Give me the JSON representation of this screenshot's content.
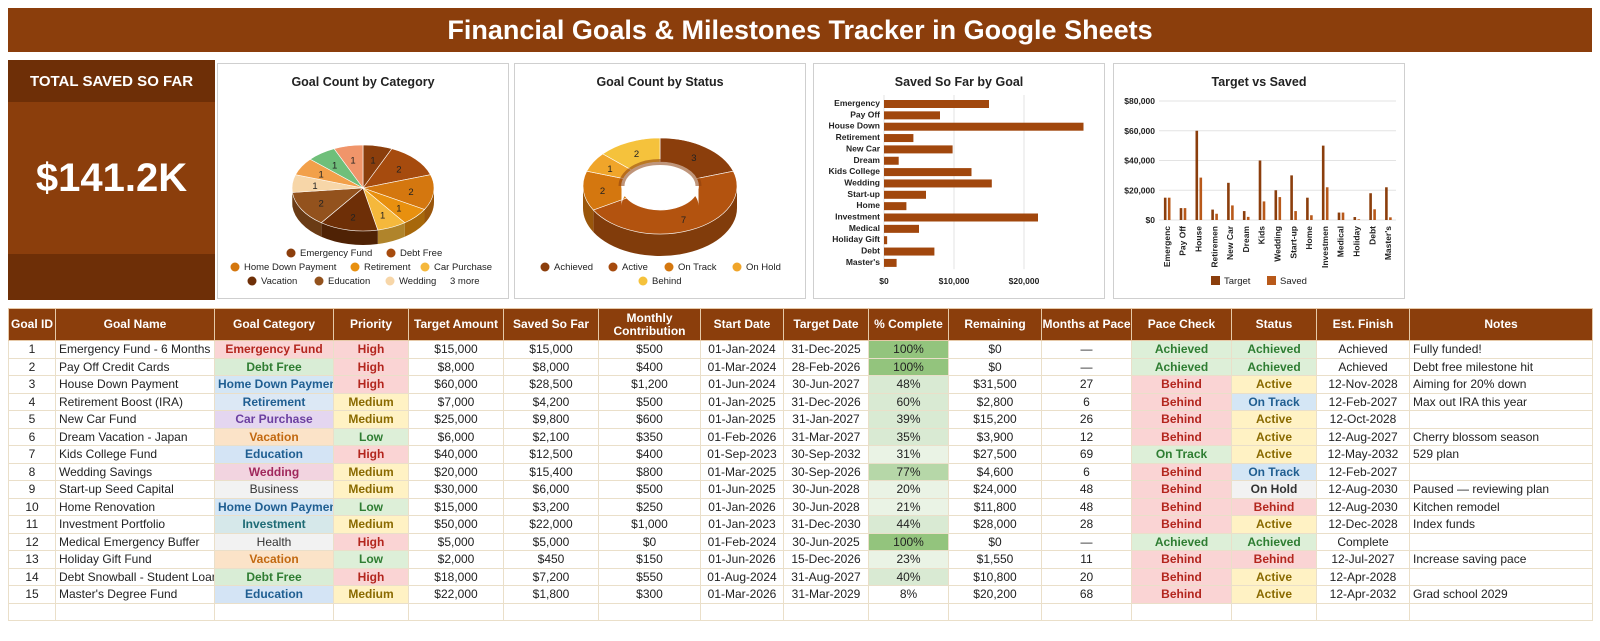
{
  "title": "Financial Goals & Milestones Tracker in Google Sheets",
  "total": {
    "label": "TOTAL SAVED SO FAR",
    "value": "$141.2K"
  },
  "colors": {
    "brand": "#8B3E0C",
    "brand_dark": "#6E2F07"
  },
  "charts": {
    "category": {
      "title": "Goal Count by Category",
      "legend": [
        {
          "label": "Emergency Fund",
          "color": "#8B3E0C"
        },
        {
          "label": "Debt Free",
          "color": "#A64B0E"
        },
        {
          "label": "Home Down Payment",
          "color": "#D4770F"
        },
        {
          "label": "Retirement",
          "color": "#E8900F"
        },
        {
          "label": "Car Purchase",
          "color": "#F5B83C"
        },
        {
          "label": "Vacation",
          "color": "#6E2F07"
        },
        {
          "label": "Education",
          "color": "#93521D"
        },
        {
          "label": "Wedding",
          "color": "#F7D6A8"
        }
      ],
      "more": "3 more"
    },
    "status": {
      "title": "Goal Count by Status",
      "legend": [
        {
          "label": "Achieved",
          "color": "#8B3E0C"
        },
        {
          "label": "Active",
          "color": "#A64B0E"
        },
        {
          "label": "On Track",
          "color": "#D4770F"
        },
        {
          "label": "On Hold",
          "color": "#F0A52A"
        },
        {
          "label": "Behind",
          "color": "#F5C23C"
        }
      ]
    },
    "saved": {
      "title": "Saved So Far by Goal"
    },
    "target": {
      "title": "Target vs Saved",
      "legend": [
        {
          "label": "Target",
          "color": "#8B3E0C"
        },
        {
          "label": "Saved",
          "color": "#B8591A"
        }
      ]
    }
  },
  "chart_data": [
    {
      "type": "pie",
      "title": "Goal Count by Category",
      "labels": [
        "Emergency Fund",
        "Debt Free",
        "Home Down Payment",
        "Retirement",
        "Car Purchase",
        "Vacation",
        "Education",
        "Wedding",
        "Business",
        "Investment",
        "Health"
      ],
      "values": [
        1,
        2,
        2,
        1,
        1,
        2,
        2,
        1,
        1,
        1,
        1
      ]
    },
    {
      "type": "pie",
      "title": "Goal Count by Status",
      "labels": [
        "Achieved",
        "Active",
        "On Track",
        "On Hold",
        "Behind"
      ],
      "values": [
        3,
        7,
        2,
        1,
        2
      ]
    },
    {
      "type": "bar",
      "title": "Saved So Far by Goal",
      "categories": [
        "Emergency",
        "Pay Off",
        "House Down",
        "Retirement",
        "New Car",
        "Dream",
        "Kids College",
        "Wedding",
        "Start-up",
        "Home",
        "Investment",
        "Medical",
        "Holiday Gift",
        "Debt",
        "Master's"
      ],
      "values": [
        15000,
        8000,
        28500,
        4200,
        9800,
        2100,
        12500,
        15400,
        6000,
        3200,
        22000,
        5000,
        450,
        7200,
        1800
      ],
      "xticks": [
        "$0",
        "$10,000",
        "$20,000"
      ],
      "xlim": [
        0,
        30000
      ]
    },
    {
      "type": "bar",
      "title": "Target vs Saved",
      "categories": [
        "Emergenc",
        "Pay Off",
        "House",
        "Retiremen",
        "New Car",
        "Dream",
        "Kids",
        "Wedding",
        "Start-up",
        "Home",
        "Investmen",
        "Medical",
        "Holiday",
        "Debt",
        "Master's"
      ],
      "series": [
        {
          "name": "Target",
          "values": [
            15000,
            8000,
            60000,
            7000,
            25000,
            6000,
            40000,
            20000,
            30000,
            15000,
            50000,
            5000,
            2000,
            18000,
            22000
          ]
        },
        {
          "name": "Saved",
          "values": [
            15000,
            8000,
            28500,
            4200,
            9800,
            2100,
            12500,
            15400,
            6000,
            3200,
            22000,
            5000,
            450,
            7200,
            1800
          ]
        }
      ],
      "yticks": [
        "$80,000",
        "$60,000",
        "$40,000",
        "$20,000",
        "$0"
      ],
      "ylim": [
        0,
        80000
      ]
    }
  ],
  "table": {
    "headers": [
      "Goal ID",
      "Goal Name",
      "Goal Category",
      "Priority",
      "Target Amount",
      "Saved So Far",
      "Monthly Contribution",
      "Start Date",
      "Target Date",
      "% Complete",
      "Remaining",
      "Months at Pace",
      "Pace Check",
      "Status",
      "Est. Finish",
      "Notes"
    ],
    "rows": [
      [
        "1",
        "Emergency Fund - 6 Months",
        "Emergency Fund",
        "High",
        "$15,000",
        "$15,000",
        "$500",
        "01-Jan-2024",
        "31-Dec-2025",
        "100%",
        "$0",
        "—",
        "Achieved",
        "Achieved",
        "Achieved",
        "Fully funded!"
      ],
      [
        "2",
        "Pay Off Credit Cards",
        "Debt Free",
        "High",
        "$8,000",
        "$8,000",
        "$400",
        "01-Mar-2024",
        "28-Feb-2026",
        "100%",
        "$0",
        "—",
        "Achieved",
        "Achieved",
        "Achieved",
        "Debt free milestone hit"
      ],
      [
        "3",
        "House Down Payment",
        "Home Down Payment",
        "High",
        "$60,000",
        "$28,500",
        "$1,200",
        "01-Jun-2024",
        "30-Jun-2027",
        "48%",
        "$31,500",
        "27",
        "Behind",
        "Active",
        "12-Nov-2028",
        "Aiming for 20% down"
      ],
      [
        "4",
        "Retirement Boost (IRA)",
        "Retirement",
        "Medium",
        "$7,000",
        "$4,200",
        "$500",
        "01-Jan-2025",
        "31-Dec-2026",
        "60%",
        "$2,800",
        "6",
        "Behind",
        "On Track",
        "12-Feb-2027",
        "Max out IRA this year"
      ],
      [
        "5",
        "New Car Fund",
        "Car Purchase",
        "Medium",
        "$25,000",
        "$9,800",
        "$600",
        "01-Jan-2025",
        "31-Jan-2027",
        "39%",
        "$15,200",
        "26",
        "Behind",
        "Active",
        "12-Oct-2028",
        ""
      ],
      [
        "6",
        "Dream Vacation - Japan",
        "Vacation",
        "Low",
        "$6,000",
        "$2,100",
        "$350",
        "01-Feb-2026",
        "31-Mar-2027",
        "35%",
        "$3,900",
        "12",
        "Behind",
        "Active",
        "12-Aug-2027",
        "Cherry blossom season"
      ],
      [
        "7",
        "Kids College Fund",
        "Education",
        "High",
        "$40,000",
        "$12,500",
        "$400",
        "01-Sep-2023",
        "30-Sep-2032",
        "31%",
        "$27,500",
        "69",
        "On Track",
        "Active",
        "12-May-2032",
        "529 plan"
      ],
      [
        "8",
        "Wedding Savings",
        "Wedding",
        "Medium",
        "$20,000",
        "$15,400",
        "$800",
        "01-Mar-2025",
        "30-Sep-2026",
        "77%",
        "$4,600",
        "6",
        "Behind",
        "On Track",
        "12-Feb-2027",
        ""
      ],
      [
        "9",
        "Start-up Seed Capital",
        "Business",
        "Medium",
        "$30,000",
        "$6,000",
        "$500",
        "01-Jun-2025",
        "30-Jun-2028",
        "20%",
        "$24,000",
        "48",
        "Behind",
        "On Hold",
        "12-Aug-2030",
        "Paused — reviewing plan"
      ],
      [
        "10",
        "Home Renovation",
        "Home Down Payment",
        "Low",
        "$15,000",
        "$3,200",
        "$250",
        "01-Jan-2026",
        "30-Jun-2028",
        "21%",
        "$11,800",
        "48",
        "Behind",
        "Behind",
        "12-Aug-2030",
        "Kitchen remodel"
      ],
      [
        "11",
        "Investment Portfolio",
        "Investment",
        "Medium",
        "$50,000",
        "$22,000",
        "$1,000",
        "01-Jan-2023",
        "31-Dec-2030",
        "44%",
        "$28,000",
        "28",
        "Behind",
        "Active",
        "12-Dec-2028",
        "Index funds"
      ],
      [
        "12",
        "Medical Emergency Buffer",
        "Health",
        "High",
        "$5,000",
        "$5,000",
        "$0",
        "01-Feb-2024",
        "30-Jun-2025",
        "100%",
        "$0",
        "—",
        "Achieved",
        "Achieved",
        "Complete",
        ""
      ],
      [
        "13",
        "Holiday Gift Fund",
        "Vacation",
        "Low",
        "$2,000",
        "$450",
        "$150",
        "01-Jun-2026",
        "15-Dec-2026",
        "23%",
        "$1,550",
        "11",
        "Behind",
        "Behind",
        "12-Jul-2027",
        "Increase saving pace"
      ],
      [
        "14",
        "Debt Snowball - Student Loan",
        "Debt Free",
        "High",
        "$18,000",
        "$7,200",
        "$550",
        "01-Aug-2024",
        "31-Aug-2027",
        "40%",
        "$10,800",
        "20",
        "Behind",
        "Active",
        "12-Apr-2028",
        ""
      ],
      [
        "15",
        "Master's Degree Fund",
        "Education",
        "Medium",
        "$22,000",
        "$1,800",
        "$300",
        "01-Mar-2026",
        "31-Mar-2029",
        "8%",
        "$20,200",
        "68",
        "Behind",
        "Active",
        "12-Apr-2032",
        "Grad school 2029"
      ]
    ]
  }
}
